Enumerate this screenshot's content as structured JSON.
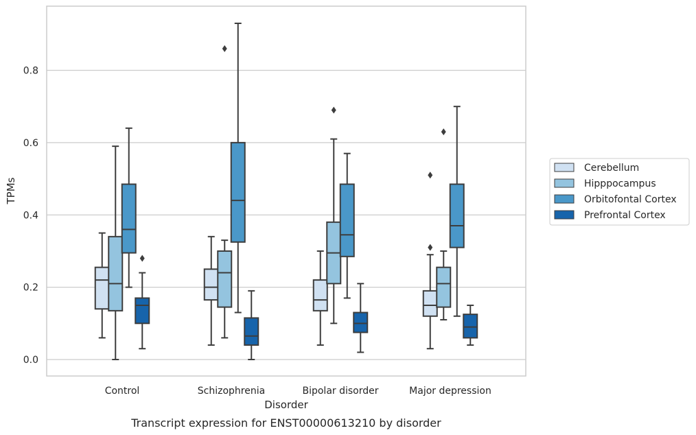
{
  "caption": "Transcript expression for ENST00000613210 by disorder",
  "chart_data": {
    "type": "box",
    "xlabel": "Disorder",
    "ylabel": "TPMs",
    "ylim": [
      -0.045,
      0.975
    ],
    "yticks": [
      "0.0",
      "0.2",
      "0.4",
      "0.6",
      "0.8"
    ],
    "ytick_values": [
      0.0,
      0.2,
      0.4,
      0.6,
      0.8
    ],
    "grid": "horizontal",
    "legend_position": "right",
    "categories": [
      "Control",
      "Schizophrenia",
      "Bipolar disorder",
      "Major depression"
    ],
    "series": [
      {
        "name": "Cerebellum",
        "color": "#d0e1f2",
        "boxes": [
          {
            "whislo": 0.06,
            "q1": 0.14,
            "med": 0.22,
            "q3": 0.255,
            "whishi": 0.35,
            "fliers": []
          },
          {
            "whislo": 0.04,
            "q1": 0.165,
            "med": 0.2,
            "q3": 0.25,
            "whishi": 0.34,
            "fliers": []
          },
          {
            "whislo": 0.04,
            "q1": 0.135,
            "med": 0.165,
            "q3": 0.22,
            "whishi": 0.3,
            "fliers": []
          },
          {
            "whislo": 0.03,
            "q1": 0.12,
            "med": 0.15,
            "q3": 0.19,
            "whishi": 0.29,
            "fliers": [
              0.31,
              0.51
            ]
          }
        ]
      },
      {
        "name": "Hipppocampus",
        "color": "#94c4df",
        "boxes": [
          {
            "whislo": 0.0,
            "q1": 0.135,
            "med": 0.21,
            "q3": 0.34,
            "whishi": 0.59,
            "fliers": []
          },
          {
            "whislo": 0.06,
            "q1": 0.145,
            "med": 0.24,
            "q3": 0.3,
            "whishi": 0.33,
            "fliers": [
              0.86
            ]
          },
          {
            "whislo": 0.1,
            "q1": 0.21,
            "med": 0.295,
            "q3": 0.38,
            "whishi": 0.61,
            "fliers": [
              0.69
            ]
          },
          {
            "whislo": 0.11,
            "q1": 0.145,
            "med": 0.21,
            "q3": 0.255,
            "whishi": 0.3,
            "fliers": [
              0.63
            ]
          }
        ]
      },
      {
        "name": "Orbitofontal Cortex",
        "color": "#4a98c9",
        "boxes": [
          {
            "whislo": 0.2,
            "q1": 0.295,
            "med": 0.36,
            "q3": 0.485,
            "whishi": 0.64,
            "fliers": []
          },
          {
            "whislo": 0.13,
            "q1": 0.325,
            "med": 0.44,
            "q3": 0.6,
            "whishi": 0.93,
            "fliers": []
          },
          {
            "whislo": 0.17,
            "q1": 0.285,
            "med": 0.345,
            "q3": 0.485,
            "whishi": 0.57,
            "fliers": []
          },
          {
            "whislo": 0.12,
            "q1": 0.31,
            "med": 0.37,
            "q3": 0.485,
            "whishi": 0.7,
            "fliers": []
          }
        ]
      },
      {
        "name": "Prefrontal Cortex",
        "color": "#1764ab",
        "boxes": [
          {
            "whislo": 0.03,
            "q1": 0.1,
            "med": 0.15,
            "q3": 0.17,
            "whishi": 0.24,
            "fliers": [
              0.28
            ]
          },
          {
            "whislo": 0.0,
            "q1": 0.04,
            "med": 0.065,
            "q3": 0.115,
            "whishi": 0.19,
            "fliers": []
          },
          {
            "whislo": 0.02,
            "q1": 0.075,
            "med": 0.1,
            "q3": 0.13,
            "whishi": 0.21,
            "fliers": []
          },
          {
            "whislo": 0.04,
            "q1": 0.06,
            "med": 0.09,
            "q3": 0.125,
            "whishi": 0.15,
            "fliers": []
          }
        ]
      }
    ]
  }
}
